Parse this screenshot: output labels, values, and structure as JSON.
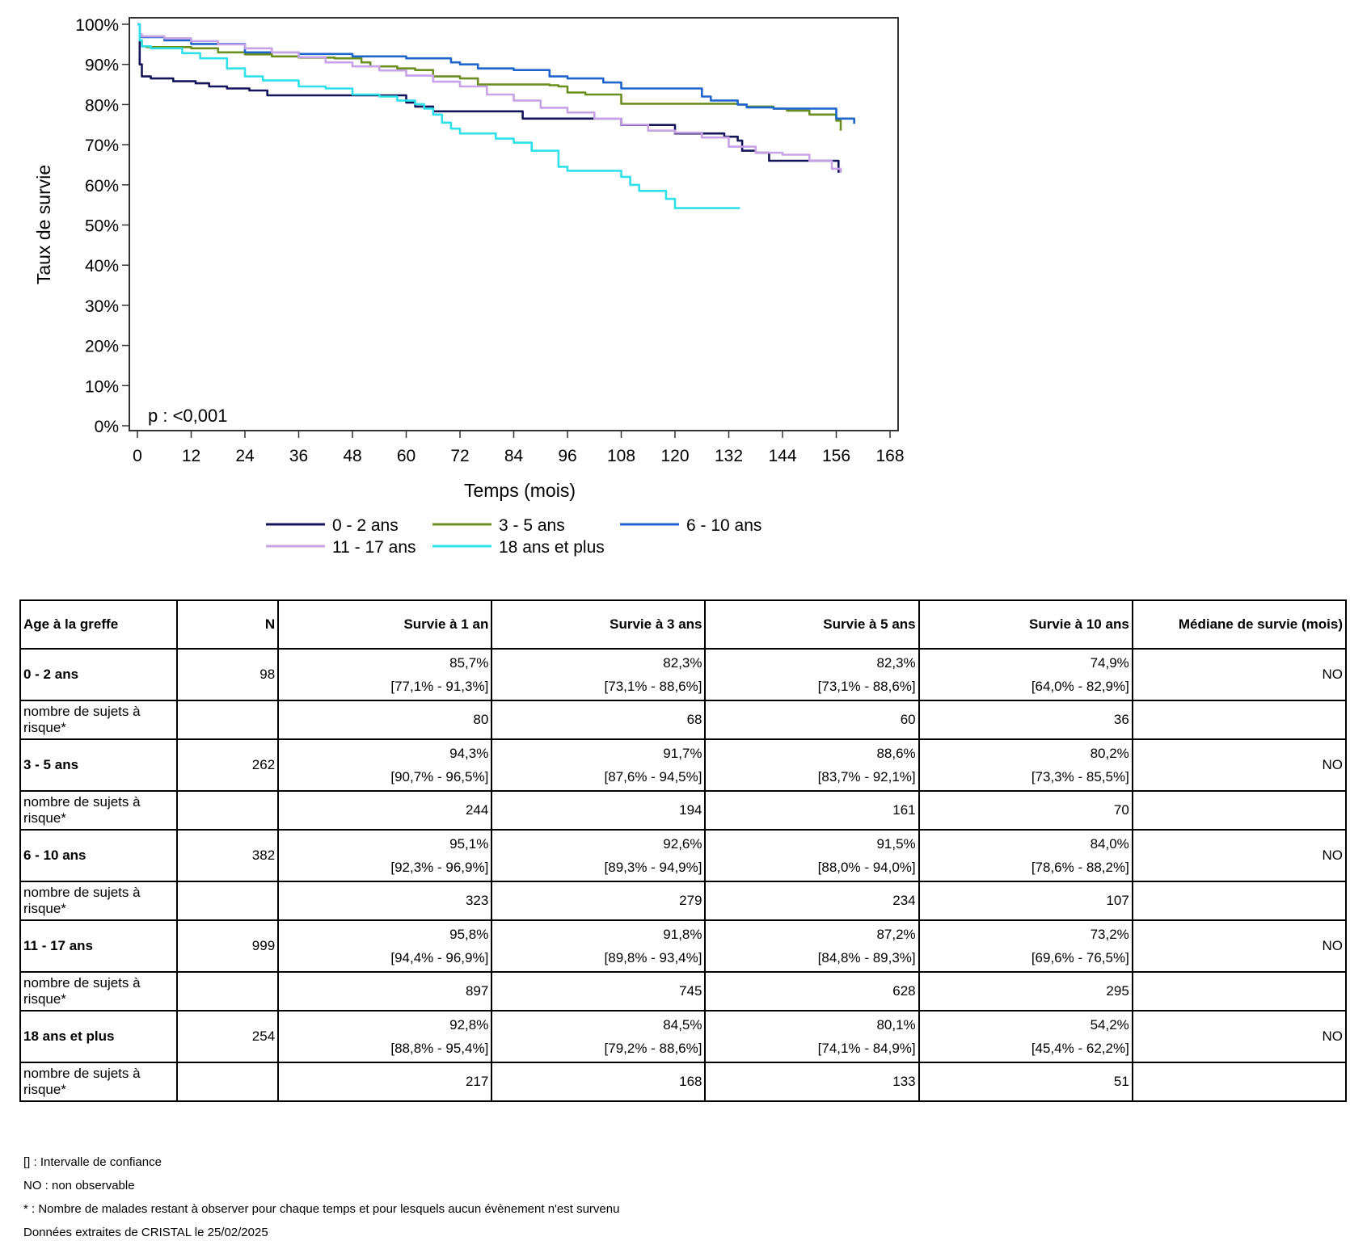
{
  "chart_data": {
    "type": "line",
    "step": true,
    "xlabel": "Temps (mois)",
    "ylabel": "Taux de survie",
    "xlim": [
      0,
      168
    ],
    "ylim": [
      0,
      100
    ],
    "xticks": [
      "0",
      "12",
      "24",
      "36",
      "48",
      "60",
      "72",
      "84",
      "96",
      "108",
      "120",
      "132",
      "144",
      "156",
      "168"
    ],
    "yticks": [
      "0%",
      "10%",
      "20%",
      "30%",
      "40%",
      "50%",
      "60%",
      "70%",
      "80%",
      "90%",
      "100%"
    ],
    "annotation": "p : <0,001",
    "grid": false,
    "legend_position": "bottom",
    "series": [
      {
        "name": "0 - 2 ans",
        "color": "#14145a",
        "x": [
          0,
          0.5,
          1,
          3,
          8,
          13,
          16,
          20,
          25,
          29,
          48,
          58,
          60,
          62,
          66,
          80,
          86,
          92,
          96,
          108,
          117,
          120,
          127,
          131,
          134,
          135,
          138,
          141,
          148,
          156,
          156.5
        ],
        "y": [
          100,
          90,
          87,
          86.5,
          85.8,
          85.3,
          84.5,
          84,
          83.5,
          82.3,
          82.3,
          82.3,
          80.5,
          79.5,
          78.3,
          78.3,
          76.5,
          76.5,
          76.5,
          74.9,
          74.9,
          72.8,
          72.8,
          72,
          71,
          68.5,
          68,
          66,
          66,
          66,
          63
        ]
      },
      {
        "name": "3 - 5 ans",
        "color": "#6b8f1e",
        "x": [
          0,
          0.5,
          1,
          2,
          12,
          18,
          24,
          30,
          36,
          44,
          50,
          52,
          58,
          62,
          66,
          72,
          76,
          84,
          92,
          94,
          96,
          100,
          108,
          112,
          128,
          134,
          136,
          142,
          145,
          150,
          155,
          156,
          157
        ],
        "y": [
          100,
          96,
          94.5,
          94.3,
          94,
          93,
          92.5,
          92,
          91.7,
          91.5,
          90.5,
          89.5,
          89,
          88.6,
          87,
          86.5,
          85,
          85,
          84.8,
          84.5,
          83,
          82.5,
          80.2,
          80.2,
          80.2,
          80,
          79.5,
          79,
          78.5,
          77.5,
          77.5,
          76,
          73.5
        ]
      },
      {
        "name": "6 - 10 ans",
        "color": "#1f66cc",
        "x": [
          0,
          0.5,
          1,
          6,
          12,
          24,
          36,
          48,
          52,
          60,
          70,
          72,
          76,
          84,
          92,
          96,
          104,
          108,
          112,
          120,
          126,
          128,
          134,
          136,
          142,
          148,
          154,
          155.5,
          156,
          157,
          160
        ],
        "y": [
          100,
          97,
          96.8,
          96,
          95.1,
          93,
          92.6,
          92,
          92,
          91.5,
          90.5,
          90,
          89,
          88.6,
          87,
          86.5,
          85.5,
          84,
          84,
          84,
          82,
          81,
          80,
          79.3,
          79,
          79,
          79,
          79,
          76.5,
          76.5,
          75.2
        ]
      },
      {
        "name": "11 - 17 ans",
        "color": "#c8a2e6",
        "x": [
          0,
          0.5,
          1,
          6,
          12,
          18,
          24,
          30,
          36,
          42,
          48,
          54,
          60,
          66,
          72,
          78,
          84,
          90,
          96,
          102,
          108,
          114,
          120,
          126,
          132,
          138,
          144,
          150,
          155,
          157
        ],
        "y": [
          100,
          97.5,
          97,
          96.5,
          95.8,
          95,
          94,
          93,
          91.8,
          90.5,
          89.5,
          88.5,
          87.2,
          85.7,
          84.5,
          82.5,
          81,
          79.2,
          78,
          76.5,
          75,
          73.5,
          73,
          71.8,
          69.5,
          68,
          67.5,
          66,
          64,
          63
        ]
      },
      {
        "name": "18 ans et plus",
        "color": "#2ee0ea",
        "x": [
          0,
          0.5,
          1,
          3,
          10,
          14,
          20,
          24,
          28,
          36,
          42,
          48,
          54,
          58,
          62,
          64,
          66,
          68,
          70,
          72,
          80,
          84,
          88,
          93,
          94,
          96,
          106,
          108,
          110,
          112,
          116,
          118,
          120,
          134.5
        ],
        "y": [
          100,
          96,
          94.5,
          94,
          92.8,
          91.5,
          89,
          87,
          86,
          84.5,
          84,
          82.5,
          82,
          81,
          80.1,
          79,
          77.5,
          75.5,
          74,
          72.8,
          71.5,
          70.5,
          68.5,
          68.5,
          64.5,
          63.5,
          63.5,
          62,
          60,
          58.5,
          58.5,
          56.5,
          54.2,
          54.2
        ]
      }
    ]
  },
  "table": {
    "headers": [
      "Age à la greffe",
      "N",
      "Survie à 1 an",
      "Survie à 3 ans",
      "Survie à 5 ans",
      "Survie à 10 ans",
      "Médiane de survie (mois)"
    ],
    "groups": [
      {
        "label": "0 - 2 ans",
        "n": "98",
        "values": [
          "85,7%",
          "82,3%",
          "82,3%",
          "74,9%"
        ],
        "ci": [
          "[77,1% - 91,3%]",
          "[73,1% - 88,6%]",
          "[73,1% - 88,6%]",
          "[64,0% - 82,9%]"
        ],
        "median": "NO",
        "risk_label": "nombre de sujets à risque*",
        "risk": [
          "80",
          "68",
          "60",
          "36"
        ]
      },
      {
        "label": "3 - 5 ans",
        "n": "262",
        "values": [
          "94,3%",
          "91,7%",
          "88,6%",
          "80,2%"
        ],
        "ci": [
          "[90,7% - 96,5%]",
          "[87,6% - 94,5%]",
          "[83,7% - 92,1%]",
          "[73,3% - 85,5%]"
        ],
        "median": "NO",
        "risk_label": "nombre de sujets à risque*",
        "risk": [
          "244",
          "194",
          "161",
          "70"
        ]
      },
      {
        "label": "6 - 10 ans",
        "n": "382",
        "values": [
          "95,1%",
          "92,6%",
          "91,5%",
          "84,0%"
        ],
        "ci": [
          "[92,3% - 96,9%]",
          "[89,3% - 94,9%]",
          "[88,0% - 94,0%]",
          "[78,6% - 88,2%]"
        ],
        "median": "NO",
        "risk_label": "nombre de sujets à risque*",
        "risk": [
          "323",
          "279",
          "234",
          "107"
        ]
      },
      {
        "label": "11 - 17 ans",
        "n": "999",
        "values": [
          "95,8%",
          "91,8%",
          "87,2%",
          "73,2%"
        ],
        "ci": [
          "[94,4% - 96,9%]",
          "[89,8% - 93,4%]",
          "[84,8% - 89,3%]",
          "[69,6% - 76,5%]"
        ],
        "median": "NO",
        "risk_label": "nombre de sujets à risque*",
        "risk": [
          "897",
          "745",
          "628",
          "295"
        ]
      },
      {
        "label": "18 ans et plus",
        "n": "254",
        "values": [
          "92,8%",
          "84,5%",
          "80,1%",
          "54,2%"
        ],
        "ci": [
          "[88,8% - 95,4%]",
          "[79,2% - 88,6%]",
          "[74,1% - 84,9%]",
          "[45,4% - 62,2%]"
        ],
        "median": "NO",
        "risk_label": "nombre de sujets à risque*",
        "risk": [
          "217",
          "168",
          "133",
          "51"
        ]
      }
    ]
  },
  "notes": [
    "[] : Intervalle de confiance",
    "NO : non observable",
    "* : Nombre de malades restant à observer pour chaque temps et pour lesquels aucun évènement n'est survenu",
    "Données extraites de CRISTAL le 25/02/2025"
  ]
}
